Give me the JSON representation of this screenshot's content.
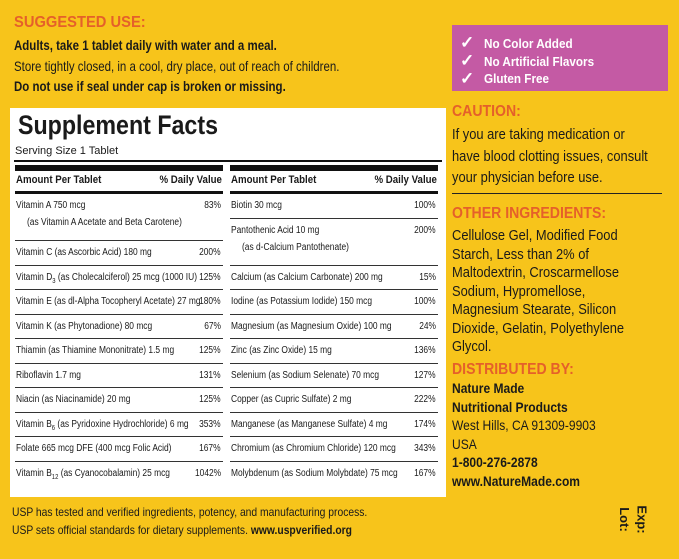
{
  "suggested_use": {
    "heading": "SUGGESTED USE:",
    "lines": [
      "Adults, take 1 tablet daily with water and a meal.",
      "Store tightly closed, in a cool, dry place, out of reach of children.",
      "Do not use if seal under cap is broken or missing."
    ]
  },
  "badges": [
    "No Color Added",
    "No Artificial Flavors",
    "Gluten Free"
  ],
  "supplement_facts": {
    "title": "Supplement Facts",
    "serving": "Serving Size 1 Tablet",
    "columns": [
      {
        "header": [
          "Amount Per Tablet",
          "% Daily Value"
        ],
        "rows": [
          {
            "name": "Vitamin A 750 mcg",
            "note": "(as Vitamin A Acetate and Beta Carotene)",
            "dv": "83%"
          },
          {
            "name": "Vitamin C (as Ascorbic Acid) 180 mg",
            "dv": "200%"
          },
          {
            "name": "Vitamin D",
            "sub": "3",
            "rest": "(as Cholecalciferol) 25 mcg (1000 IU)",
            "dv": "125%"
          },
          {
            "name": "Vitamin E (as dl-Alpha Tocopheryl Acetate) 27 mg",
            "dv": "180%"
          },
          {
            "name": "Vitamin K (as Phytonadione) 80 mcg",
            "dv": "67%"
          },
          {
            "name": "Thiamin (as Thiamine Mononitrate) 1.5 mg",
            "dv": "125%"
          },
          {
            "name": "Riboflavin 1.7 mg",
            "dv": "131%"
          },
          {
            "name": "Niacin (as Niacinamide) 20 mg",
            "dv": "125%"
          },
          {
            "name": "Vitamin B",
            "sub": "6",
            "rest": "(as Pyridoxine Hydrochloride) 6 mg",
            "dv": "353%"
          },
          {
            "name": "Folate 665 mcg DFE (400 mcg Folic Acid)",
            "dv": "167%"
          },
          {
            "name": "Vitamin B",
            "sub": "12",
            "rest": "(as Cyanocobalamin) 25 mcg",
            "dv": "1042%"
          }
        ]
      },
      {
        "header": [
          "Amount Per Tablet",
          "% Daily Value"
        ],
        "rows": [
          {
            "name": "Biotin 30 mcg",
            "dv": "100%"
          },
          {
            "name": "Pantothenic Acid 10 mg",
            "note": "(as d-Calcium Pantothenate)",
            "dv": "200%"
          },
          {
            "name": "Calcium (as Calcium Carbonate) 200 mg",
            "dv": "15%"
          },
          {
            "name": "Iodine (as Potassium Iodide) 150 mcg",
            "dv": "100%"
          },
          {
            "name": "Magnesium (as Magnesium Oxide) 100 mg",
            "dv": "24%"
          },
          {
            "name": "Zinc (as Zinc Oxide) 15 mg",
            "dv": "136%"
          },
          {
            "name": "Selenium (as Sodium Selenate) 70 mcg",
            "dv": "127%"
          },
          {
            "name": "Copper (as Cupric Sulfate) 2 mg",
            "dv": "222%"
          },
          {
            "name": "Manganese (as Manganese Sulfate) 4 mg",
            "dv": "174%"
          },
          {
            "name": "Chromium (as Chromium Chloride) 120 mcg",
            "dv": "343%"
          },
          {
            "name": "Molybdenum (as Sodium Molybdate) 75 mcg",
            "dv": "167%"
          }
        ]
      }
    ]
  },
  "caution": {
    "heading": "CAUTION:",
    "lines": [
      "If you are taking medication or",
      "have blood clotting issues, consult",
      "your physician before use."
    ]
  },
  "other_ingredients": {
    "heading": "OTHER INGREDIENTS:",
    "lines": [
      "Cellulose Gel, Modified Food",
      "Starch, Less than 2% of",
      "Maltodextrin, Croscarmellose",
      "Sodium, Hypromellose,",
      "Magnesium Stearate, Silicon",
      "Dioxide, Gelatin, Polyethylene",
      "Glycol."
    ]
  },
  "distributed_by": {
    "heading": "DISTRIBUTED BY:",
    "lines": [
      "Nature Made",
      "Nutritional Products",
      "West Hills, CA 91309-9903",
      "USA",
      "1-800-276-2878",
      "www.NatureMade.com"
    ]
  },
  "footer": {
    "line": "USP has tested and verified ingredients, potency, and manufacturing process.",
    "text": "USP sets official standards for dietary supplements.",
    "link": "www.uspverified.org"
  },
  "lot": "Lot:",
  "exp": "Exp:"
}
